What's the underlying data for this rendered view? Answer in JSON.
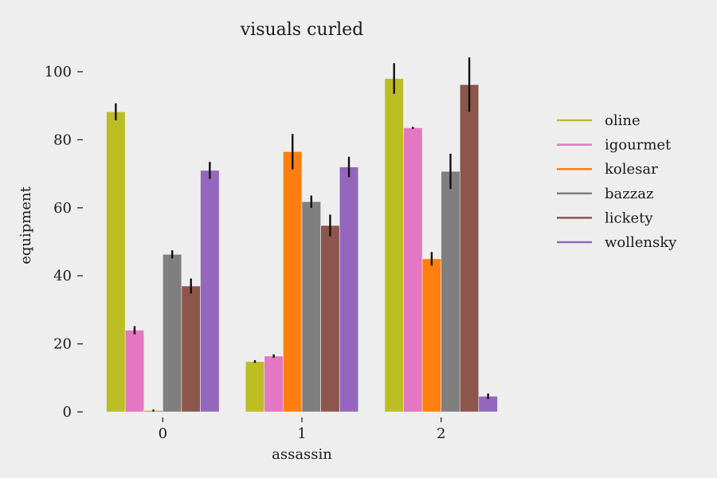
{
  "chart_data": {
    "type": "bar",
    "title": "visuals curled",
    "xlabel": "assassin",
    "ylabel": "equipment",
    "categories": [
      "0",
      "1",
      "2"
    ],
    "ylim": [
      0,
      105
    ],
    "yticks": [
      0,
      20,
      40,
      60,
      80,
      100
    ],
    "grid": false,
    "legend_position": "right",
    "series": [
      {
        "name": "oline",
        "color": "#bcbd22",
        "values": [
          88.2,
          14.8,
          98.0
        ],
        "errors": [
          2.5,
          0.4,
          4.5
        ]
      },
      {
        "name": "igourmet",
        "color": "#e377c2",
        "values": [
          24.0,
          16.4,
          83.5
        ],
        "errors": [
          1.2,
          0.5,
          0.3
        ]
      },
      {
        "name": "kolesar",
        "color": "#ff7f0e",
        "values": [
          0.4,
          76.5,
          45.0
        ],
        "errors": [
          0.3,
          5.2,
          2.0
        ]
      },
      {
        "name": "bazzaz",
        "color": "#7f7f7f",
        "values": [
          46.3,
          61.8,
          70.7
        ],
        "errors": [
          1.2,
          1.8,
          5.2
        ]
      },
      {
        "name": "lickety",
        "color": "#8c564b",
        "values": [
          37.0,
          54.8,
          96.2
        ],
        "errors": [
          2.2,
          3.2,
          8.0
        ]
      },
      {
        "name": "wollensky",
        "color": "#9467bd",
        "values": [
          71.0,
          72.0,
          4.6
        ],
        "errors": [
          2.5,
          3.0,
          0.8
        ]
      }
    ]
  }
}
